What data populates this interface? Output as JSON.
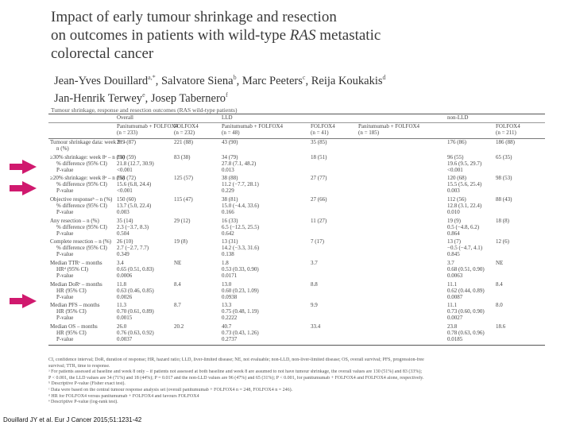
{
  "paper": {
    "title_lines": [
      "Impact of early tumour shrinkage and resection",
      "on outcomes in patients with wild-type ",
      "RAS",
      " metastatic",
      "colorectal cancer"
    ],
    "authors_line1": "Jean-Yves Douillard",
    "authors_line1_sup": "a,*",
    "authors_siena": ", Salvatore Siena",
    "authors_siena_sup": "b",
    "authors_peeters": ", Marc Peeters",
    "authors_peeters_sup": "c",
    "authors_koukakis": ", Reija Koukakis",
    "authors_koukakis_sup": "d",
    "authors_terwey": "Jan-Henrik Terwey",
    "authors_terwey_sup": "e",
    "authors_tabernero": ", Josep Tabernero",
    "authors_tabernero_sup": "f",
    "table_caption": "Tumour shrinkage, response and resection outcomes (RAS wild-type patients)"
  },
  "table": {
    "groups": [
      "Overall",
      "LLD",
      "non-LLD"
    ],
    "headers": [
      "Panitumumab + FOLFOX4",
      "FOLFOX4",
      "Panitumumab + FOLFOX4",
      "FOLFOX4",
      "Panitumumab + FOLFOX4",
      "FOLFOX4"
    ],
    "header_ns": [
      "(n = 233)",
      "(n = 232)",
      "(n = 48)",
      "(n = 41)",
      "(n = 185)",
      "(n = 211)"
    ],
    "blocks": [
      {
        "lines": [
          {
            "label": "Tumour shrinkage data: week 8ᵃ –",
            "vals": [
              "219 (87)",
              "221 (88)",
              "43 (90)",
              "35 (85)",
              "176 (86)",
              "186 (88)"
            ]
          },
          {
            "label": "n (%)",
            "indent": true,
            "vals": [
              "",
              "",
              "",
              "",
              "",
              ""
            ]
          }
        ]
      },
      {
        "lines": [
          {
            "label": "≥30% shrinkage: week 8ᵃ – n (%)",
            "vals": [
              "130 (59)",
              "83 (38)",
              "34 (79)",
              "18 (51)",
              "96 (55)",
              "65 (35)"
            ]
          },
          {
            "label": "% difference (95% CI)",
            "indent": true,
            "vals": [
              "21.8 (12.7, 30.9)",
              "",
              "27.8 (7.1, 48.2)",
              "",
              "19.6 (9.5, 29.7)",
              ""
            ]
          },
          {
            "label": "P-value",
            "indent": true,
            "vals": [
              "<0.001",
              "",
              "0.013",
              "",
              "<0.001",
              ""
            ]
          }
        ]
      },
      {
        "lines": [
          {
            "label": "≥20% shrinkage: week 8ᵃ – n (%)",
            "vals": [
              "158 (72)",
              "125 (57)",
              "38 (88)",
              "27 (77)",
              "120 (68)",
              "98 (53)"
            ]
          },
          {
            "label": "% difference (95% CI)",
            "indent": true,
            "vals": [
              "15.6 (6.8, 24.4)",
              "",
              "11.2 (−7.7, 28.1)",
              "",
              "15.5 (5.6, 25.4)",
              ""
            ]
          },
          {
            "label": "P-value",
            "indent": true,
            "vals": [
              "<0.001",
              "",
              "0.229",
              "",
              "0.003",
              ""
            ]
          }
        ]
      },
      {
        "lines": [
          {
            "label": "Objective responseᵇ – n (%)",
            "vals": [
              "150 (60)",
              "115 (47)",
              "38 (81)",
              "27 (66)",
              "112 (56)",
              "88 (43)"
            ]
          },
          {
            "label": "% difference (95% CI)",
            "indent": true,
            "vals": [
              "13.7 (5.0, 22.4)",
              "",
              "15.0 (−4.4, 33.6)",
              "",
              "12.8 (3.1, 22.4)",
              ""
            ]
          },
          {
            "label": "P-value",
            "indent": true,
            "vals": [
              "0.003",
              "",
              "0.166",
              "",
              "0.010",
              ""
            ]
          }
        ]
      },
      {
        "lines": [
          {
            "label": "Any resection – n (%)",
            "vals": [
              "35 (14)",
              "29 (12)",
              "16 (33)",
              "11 (27)",
              "19 (9)",
              "18 (8)"
            ]
          },
          {
            "label": "% difference (95% CI)",
            "indent": true,
            "vals": [
              "2.3 (−3.7, 8.3)",
              "",
              "6.5 (−12.5, 25.5)",
              "",
              "0.5 (−4.8, 6.2)",
              ""
            ]
          },
          {
            "label": "P-value",
            "indent": true,
            "vals": [
              "0.504",
              "",
              "0.642",
              "",
              "0.864",
              ""
            ]
          }
        ]
      },
      {
        "lines": [
          {
            "label": "Complete resection – n (%)",
            "vals": [
              "26 (10)",
              "19 (8)",
              "13 (31)",
              "7 (17)",
              "13 (7)",
              "12 (6)"
            ]
          },
          {
            "label": "% difference (95% CI)",
            "indent": true,
            "vals": [
              "2.7 (−2.7, 7.7)",
              "",
              "14.2 (−3.3, 31.6)",
              "",
              "−0.5 (−4.7, 4.1)",
              ""
            ]
          },
          {
            "label": "P-value",
            "indent": true,
            "vals": [
              "0.349",
              "",
              "0.138",
              "",
              "0.845",
              ""
            ]
          }
        ]
      },
      {
        "lines": [
          {
            "label": "Median TTRᶜ – months",
            "vals": [
              "3.4",
              "NE",
              "1.8",
              "3.7",
              "3.7",
              "NE"
            ]
          },
          {
            "label": "HRᵈ (95% CI)",
            "indent": true,
            "vals": [
              "0.65 (0.51, 0.83)",
              "",
              "0.53 (0.33, 0.90)",
              "",
              "0.68 (0.51, 0.90)",
              ""
            ]
          },
          {
            "label": "P-value",
            "indent": true,
            "vals": [
              "0.0006",
              "",
              "0.0171",
              "",
              "0.0063",
              ""
            ]
          }
        ]
      },
      {
        "lines": [
          {
            "label": "Median DoRᵉ – months",
            "vals": [
              "11.8",
              "8.4",
              "13.0",
              "8.8",
              "11.1",
              "8.4"
            ]
          },
          {
            "label": "HR (95% CI)",
            "indent": true,
            "vals": [
              "0.63 (0.46, 0.85)",
              "",
              "0.60 (0.23, 1.09)",
              "",
              "0.62 (0.44, 0.89)",
              ""
            ]
          },
          {
            "label": "P-value",
            "indent": true,
            "vals": [
              "0.0026",
              "",
              "0.0938",
              "",
              "0.0087",
              ""
            ]
          }
        ]
      },
      {
        "lines": [
          {
            "label": "Median PFS – months",
            "vals": [
              "11.3",
              "8.7",
              "13.3",
              "9.9",
              "11.1",
              "8.0"
            ]
          },
          {
            "label": "HR (95% CI)",
            "indent": true,
            "vals": [
              "0.70 (0.61, 0.89)",
              "",
              "0.75 (0.48, 1.19)",
              "",
              "0.73 (0.60, 0.90)",
              ""
            ]
          },
          {
            "label": "P-value",
            "indent": true,
            "vals": [
              "0.0015",
              "",
              "0.2222",
              "",
              "0.0027",
              ""
            ]
          }
        ]
      },
      {
        "lines": [
          {
            "label": "Median OS – months",
            "vals": [
              "26.0",
              "20.2",
              "40.7",
              "33.4",
              "23.8",
              "18.6"
            ]
          },
          {
            "label": "HR (95% CI)",
            "indent": true,
            "vals": [
              "0.76 (0.63, 0.92)",
              "",
              "0.73 (0.43, 1.26)",
              "",
              "0.78 (0.63, 0.96)",
              ""
            ]
          },
          {
            "label": "P-value",
            "indent": true,
            "vals": [
              "0.0037",
              "",
              "0.2737",
              "",
              "0.0185",
              ""
            ]
          }
        ]
      }
    ]
  },
  "footnotes": [
    "CI, confidence interval; DoR, duration of response; HR, hazard ratio; LLD, liver-limited disease; NE, not evaluable; non-LLD, non-liver-limited disease; OS, overall survival; PFS, progression-free",
    "survival; TTR, time to response.",
    "ᵃ For patients assessed at baseline and week 8 only – if patients not assessed at both baseline and week 8 are assumed to not have tumour shrinkage, the overall values are 130 (51%) and 83 (33%);",
    "P < 0.001, the LLD values are 34 (71%) and 18 (44%); P = 0.017 and the non-LLD values are 96 (47%) and 65 (31%); P < 0.001, for panitumumab + FOLFOX4 and FOLFOX4 alone, respectively.",
    "ᵇ Descriptive P-value (Fisher exact test).",
    "ᶜ Data were based on the central tumour response analysis set (overall panitumumab + FOLFOX4 n = 248, FOLFOX4 n = 246).",
    "ᵈ HR for FOLFOX4 versus panitumumab + FOLFOX4 and favours FOLFOX4",
    "ᵉ Descriptive P-value (log-rank test)."
  ],
  "citation": "Douillard JY et al. Eur J Cancer 2015;51:1231-42",
  "accent_color": "#d0196e"
}
